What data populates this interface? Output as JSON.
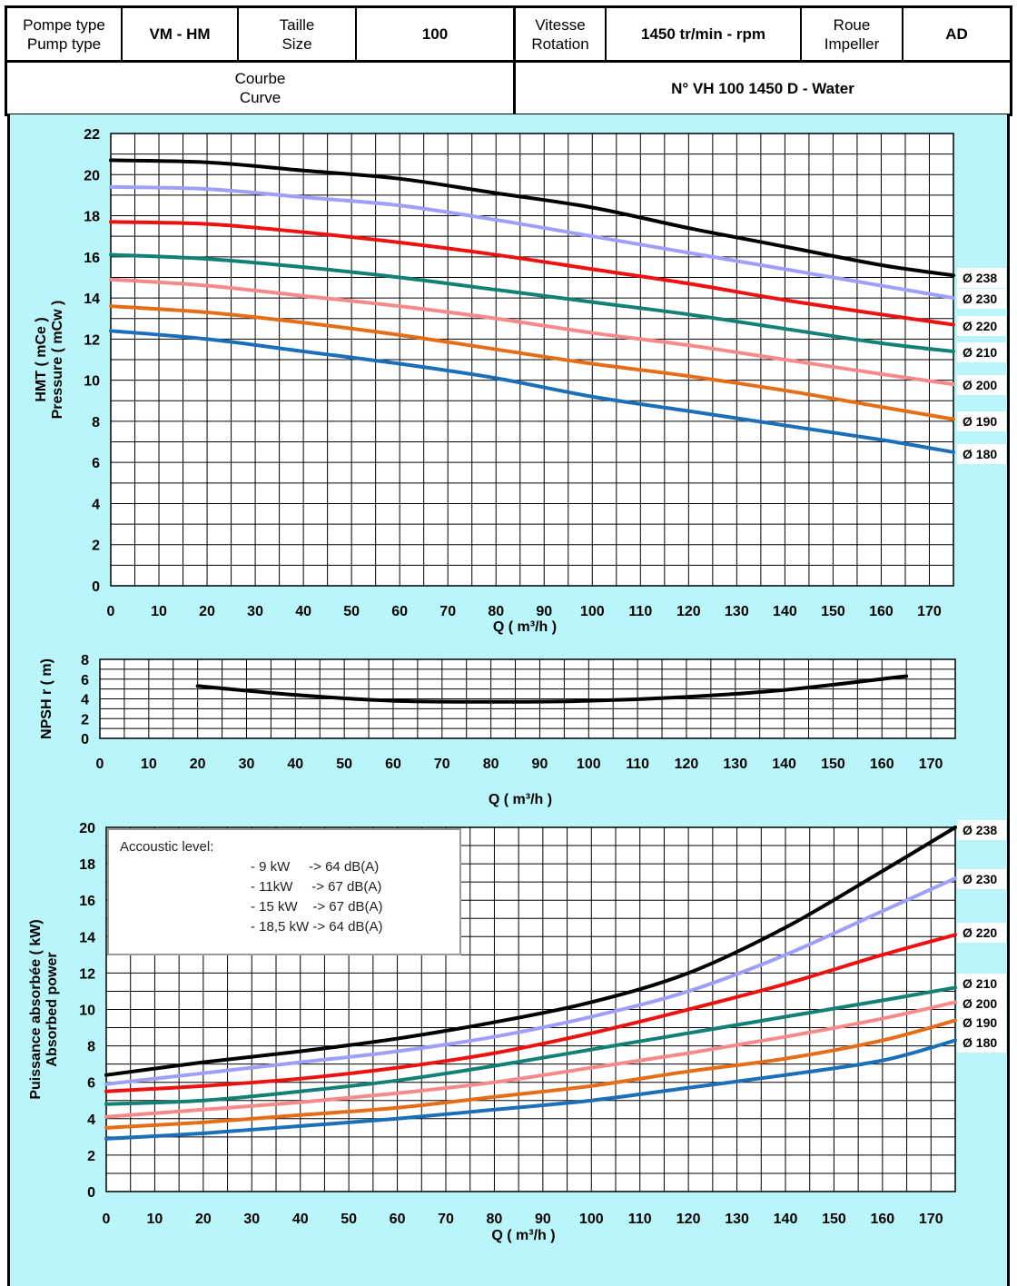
{
  "header": {
    "pump_type_label": [
      "Pompe type",
      "Pump type"
    ],
    "pump_type_value": "VM - HM",
    "size_label": [
      "Taille",
      "Size"
    ],
    "size_value": "100",
    "speed_label": [
      "Vitesse",
      "Rotation"
    ],
    "speed_value": "1450 tr/min - rpm",
    "impeller_label": [
      "Roue",
      "Impeller"
    ],
    "impeller_value": "AD",
    "curve_label": [
      "Courbe",
      "Curve"
    ],
    "curve_value": "N° VH 100 1450 D - Water"
  },
  "colors": {
    "panel_bg": "#b9f5f9",
    "d238": "#000000",
    "d230": "#9f9ff7",
    "d220": "#ee1111",
    "d210": "#138075",
    "d200": "#f58a8a",
    "d190": "#e56d17",
    "d180": "#1a6fb8"
  },
  "acoustic": {
    "title": "Accoustic level:",
    "rows": [
      "- 9 kW     -> 64 dB(A)",
      "- 11kW     -> 67 dB(A)",
      "- 15 kW    -> 67 dB(A)",
      "- 18,5 kW -> 64 dB(A)"
    ]
  },
  "chart_data": [
    {
      "type": "line",
      "name": "head",
      "ylabel": [
        "HMT ( mCe )",
        "Pressure ( mCw )"
      ],
      "xlabel": "Q ( m³/h )",
      "xlim": [
        0,
        175
      ],
      "ylim": [
        0,
        22
      ],
      "xticks": [
        0,
        10,
        20,
        30,
        40,
        50,
        60,
        70,
        80,
        90,
        100,
        110,
        120,
        130,
        140,
        150,
        160,
        170
      ],
      "yticks": [
        0,
        2,
        4,
        6,
        8,
        10,
        12,
        14,
        16,
        18,
        20,
        22
      ],
      "grid": true,
      "series": [
        {
          "name": "Ø 238",
          "color": "#000000",
          "points": [
            [
              0,
              20.7
            ],
            [
              20,
              20.6
            ],
            [
              40,
              20.2
            ],
            [
              60,
              19.8
            ],
            [
              80,
              19.1
            ],
            [
              100,
              18.4
            ],
            [
              120,
              17.4
            ],
            [
              140,
              16.5
            ],
            [
              160,
              15.6
            ],
            [
              175,
              15.1
            ]
          ]
        },
        {
          "name": "Ø 230",
          "color": "#9f9ff7",
          "points": [
            [
              0,
              19.4
            ],
            [
              20,
              19.3
            ],
            [
              40,
              18.9
            ],
            [
              60,
              18.5
            ],
            [
              80,
              17.8
            ],
            [
              100,
              17.0
            ],
            [
              120,
              16.2
            ],
            [
              140,
              15.4
            ],
            [
              160,
              14.6
            ],
            [
              175,
              14.0
            ]
          ]
        },
        {
          "name": "Ø 220",
          "color": "#ee1111",
          "points": [
            [
              0,
              17.7
            ],
            [
              20,
              17.6
            ],
            [
              40,
              17.2
            ],
            [
              60,
              16.7
            ],
            [
              80,
              16.1
            ],
            [
              100,
              15.4
            ],
            [
              120,
              14.7
            ],
            [
              140,
              13.9
            ],
            [
              160,
              13.2
            ],
            [
              175,
              12.7
            ]
          ]
        },
        {
          "name": "Ø 210",
          "color": "#138075",
          "points": [
            [
              0,
              16.1
            ],
            [
              20,
              15.9
            ],
            [
              40,
              15.5
            ],
            [
              60,
              15.0
            ],
            [
              80,
              14.4
            ],
            [
              100,
              13.8
            ],
            [
              120,
              13.2
            ],
            [
              140,
              12.5
            ],
            [
              160,
              11.8
            ],
            [
              175,
              11.4
            ]
          ]
        },
        {
          "name": "Ø 200",
          "color": "#f58a8a",
          "points": [
            [
              0,
              14.9
            ],
            [
              20,
              14.6
            ],
            [
              40,
              14.1
            ],
            [
              60,
              13.6
            ],
            [
              80,
              13.0
            ],
            [
              100,
              12.3
            ],
            [
              120,
              11.7
            ],
            [
              140,
              11.0
            ],
            [
              160,
              10.3
            ],
            [
              175,
              9.8
            ]
          ]
        },
        {
          "name": "Ø 190",
          "color": "#e56d17",
          "points": [
            [
              0,
              13.6
            ],
            [
              20,
              13.3
            ],
            [
              40,
              12.8
            ],
            [
              60,
              12.2
            ],
            [
              80,
              11.5
            ],
            [
              100,
              10.8
            ],
            [
              120,
              10.2
            ],
            [
              140,
              9.5
            ],
            [
              160,
              8.7
            ],
            [
              175,
              8.1
            ]
          ]
        },
        {
          "name": "Ø 180",
          "color": "#1a6fb8",
          "points": [
            [
              0,
              12.4
            ],
            [
              20,
              12.0
            ],
            [
              40,
              11.4
            ],
            [
              60,
              10.8
            ],
            [
              80,
              10.1
            ],
            [
              100,
              9.2
            ],
            [
              120,
              8.5
            ],
            [
              140,
              7.8
            ],
            [
              160,
              7.1
            ],
            [
              175,
              6.5
            ]
          ]
        }
      ]
    },
    {
      "type": "line",
      "name": "npsh",
      "ylabel": "NPSH r ( m)",
      "xlabel": "Q ( m³/h )",
      "xlim": [
        0,
        175
      ],
      "ylim": [
        0,
        8
      ],
      "xticks": [
        0,
        10,
        20,
        30,
        40,
        50,
        60,
        70,
        80,
        90,
        100,
        110,
        120,
        130,
        140,
        150,
        160,
        170
      ],
      "yticks": [
        0,
        2,
        4,
        6,
        8
      ],
      "grid": true,
      "series": [
        {
          "color": "#000000",
          "points": [
            [
              20,
              5.3
            ],
            [
              40,
              4.4
            ],
            [
              60,
              3.8
            ],
            [
              80,
              3.7
            ],
            [
              100,
              3.8
            ],
            [
              120,
              4.2
            ],
            [
              140,
              4.9
            ],
            [
              165,
              6.3
            ]
          ]
        }
      ]
    },
    {
      "type": "line",
      "name": "power",
      "ylabel": [
        "Puissance absorbée ( kW)",
        "Absorbed power"
      ],
      "xlabel": "Q ( m³/h )",
      "xlim": [
        0,
        175
      ],
      "ylim": [
        0,
        20
      ],
      "xticks": [
        0,
        10,
        20,
        30,
        40,
        50,
        60,
        70,
        80,
        90,
        100,
        110,
        120,
        130,
        140,
        150,
        160,
        170
      ],
      "yticks": [
        0,
        2,
        4,
        6,
        8,
        10,
        12,
        14,
        16,
        18,
        20
      ],
      "grid": true,
      "series": [
        {
          "name": "Ø 238",
          "color": "#000000",
          "points": [
            [
              0,
              6.4
            ],
            [
              20,
              7.1
            ],
            [
              40,
              7.7
            ],
            [
              60,
              8.4
            ],
            [
              80,
              9.3
            ],
            [
              100,
              10.4
            ],
            [
              120,
              12.0
            ],
            [
              140,
              14.5
            ],
            [
              160,
              17.6
            ],
            [
              175,
              20.0
            ]
          ]
        },
        {
          "name": "Ø 230",
          "color": "#9f9ff7",
          "points": [
            [
              0,
              5.9
            ],
            [
              20,
              6.5
            ],
            [
              40,
              7.1
            ],
            [
              60,
              7.7
            ],
            [
              80,
              8.5
            ],
            [
              100,
              9.6
            ],
            [
              120,
              11.0
            ],
            [
              140,
              13.0
            ],
            [
              160,
              15.4
            ],
            [
              175,
              17.2
            ]
          ]
        },
        {
          "name": "Ø 220",
          "color": "#ee1111",
          "points": [
            [
              0,
              5.5
            ],
            [
              20,
              5.8
            ],
            [
              40,
              6.2
            ],
            [
              60,
              6.8
            ],
            [
              80,
              7.6
            ],
            [
              100,
              8.7
            ],
            [
              120,
              10.0
            ],
            [
              140,
              11.4
            ],
            [
              160,
              13.0
            ],
            [
              175,
              14.1
            ]
          ]
        },
        {
          "name": "Ø 210",
          "color": "#138075",
          "points": [
            [
              0,
              4.8
            ],
            [
              20,
              5.0
            ],
            [
              40,
              5.5
            ],
            [
              60,
              6.1
            ],
            [
              80,
              6.9
            ],
            [
              100,
              7.8
            ],
            [
              120,
              8.7
            ],
            [
              140,
              9.6
            ],
            [
              160,
              10.5
            ],
            [
              175,
              11.2
            ]
          ]
        },
        {
          "name": "Ø 200",
          "color": "#f58a8a",
          "points": [
            [
              0,
              4.1
            ],
            [
              20,
              4.5
            ],
            [
              40,
              4.9
            ],
            [
              60,
              5.4
            ],
            [
              80,
              6.0
            ],
            [
              100,
              6.8
            ],
            [
              120,
              7.6
            ],
            [
              140,
              8.5
            ],
            [
              160,
              9.5
            ],
            [
              175,
              10.4
            ]
          ]
        },
        {
          "name": "Ø 190",
          "color": "#e56d17",
          "points": [
            [
              0,
              3.5
            ],
            [
              20,
              3.8
            ],
            [
              40,
              4.2
            ],
            [
              60,
              4.6
            ],
            [
              80,
              5.2
            ],
            [
              100,
              5.8
            ],
            [
              120,
              6.6
            ],
            [
              140,
              7.3
            ],
            [
              160,
              8.3
            ],
            [
              175,
              9.4
            ]
          ]
        },
        {
          "name": "Ø 180",
          "color": "#1a6fb8",
          "points": [
            [
              0,
              2.9
            ],
            [
              20,
              3.2
            ],
            [
              40,
              3.6
            ],
            [
              60,
              4.0
            ],
            [
              80,
              4.5
            ],
            [
              100,
              5.0
            ],
            [
              120,
              5.7
            ],
            [
              140,
              6.4
            ],
            [
              160,
              7.2
            ],
            [
              175,
              8.3
            ]
          ]
        }
      ]
    }
  ]
}
